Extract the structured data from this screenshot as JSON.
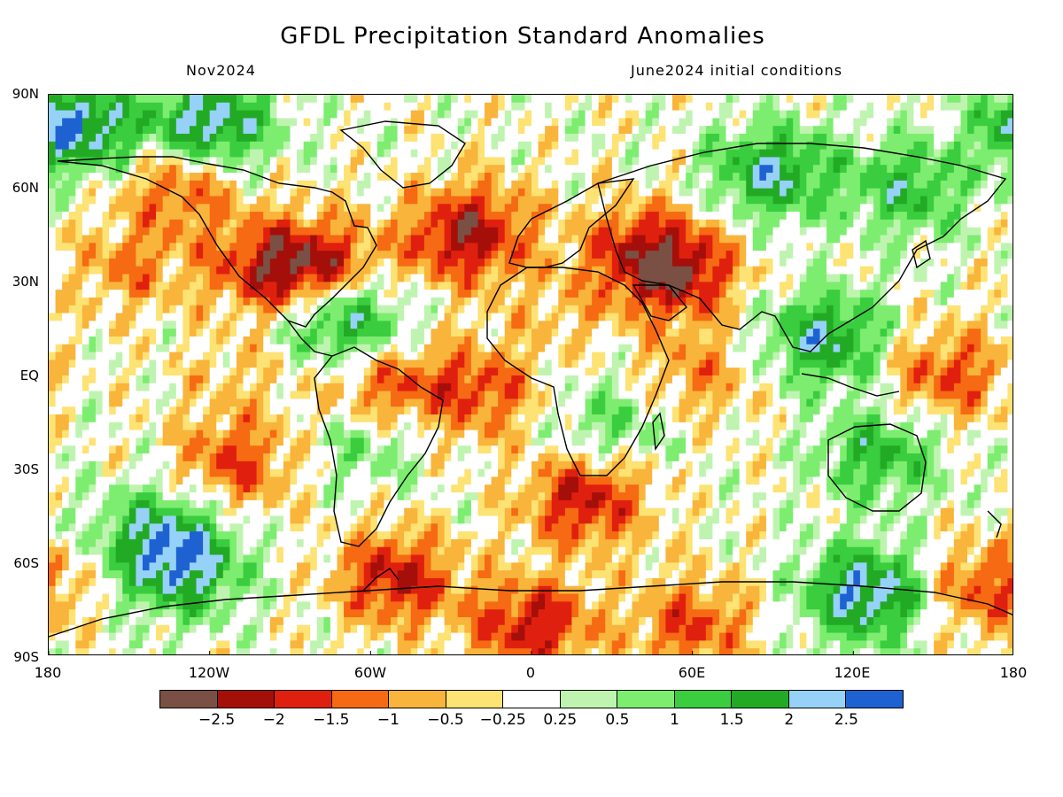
{
  "title": "GFDL Precipitation Standard Anomalies",
  "subtitle_left": "Nov2024",
  "subtitle_right": "June2024 initial conditions",
  "lat_labels": [
    "90N",
    "60N",
    "30N",
    "EQ",
    "30S",
    "60S",
    "90S"
  ],
  "lon_labels": [
    "180",
    "120W",
    "60W",
    "0",
    "60E",
    "120E",
    "180"
  ],
  "colorbar": {
    "colors": [
      "#7a5044",
      "#a50f0a",
      "#e0200e",
      "#f56a12",
      "#f9b43b",
      "#fde274",
      "#ffffff",
      "#bff4b0",
      "#7ded70",
      "#3acd3f",
      "#22aa25",
      "#96d2f7",
      "#1e62d2"
    ],
    "labels": [
      "−2.5",
      "−2",
      "−1.5",
      "−1",
      "−0.5",
      "−0.25",
      "0.25",
      "0.5",
      "1",
      "1.5",
      "2",
      "2.5"
    ]
  },
  "chart_data": {
    "type": "heatmap",
    "title": "GFDL Precipitation Standard Anomalies",
    "variable": "precipitation standard anomaly",
    "forecast_month": "Nov2024",
    "initial_conditions": "June2024 initial conditions",
    "lon_range": [
      -180,
      180
    ],
    "lat_range": [
      -90,
      90
    ],
    "levels": [
      -2.5,
      -2,
      -1.5,
      -1,
      -0.5,
      -0.25,
      0.25,
      0.5,
      1,
      1.5,
      2,
      2.5
    ],
    "regions": [
      {
        "lon": -130,
        "lat": 62,
        "value": -1.5
      },
      {
        "lon": -150,
        "lat": 35,
        "value": -1.0
      },
      {
        "lon": -100,
        "lat": 35,
        "value": -1.5
      },
      {
        "lon": -80,
        "lat": 35,
        "value": -2.0
      },
      {
        "lon": -70,
        "lat": 18,
        "value": 2.0
      },
      {
        "lon": -30,
        "lat": 42,
        "value": -1.0
      },
      {
        "lon": -20,
        "lat": 47,
        "value": -1.5
      },
      {
        "lon": 40,
        "lat": 40,
        "value": -1.5
      },
      {
        "lon": 55,
        "lat": 33,
        "value": -2.0
      },
      {
        "lon": 10,
        "lat": 20,
        "value": -0.5
      },
      {
        "lon": -55,
        "lat": -5,
        "value": -1.5
      },
      {
        "lon": -20,
        "lat": -5,
        "value": -1.5
      },
      {
        "lon": 20,
        "lat": -40,
        "value": -2.0
      },
      {
        "lon": -110,
        "lat": -28,
        "value": -1.5
      },
      {
        "lon": -110,
        "lat": 0,
        "value": -0.5
      },
      {
        "lon": 155,
        "lat": 0,
        "value": -1.5
      },
      {
        "lon": 60,
        "lat": 0,
        "value": -1.0
      },
      {
        "lon": 110,
        "lat": 12,
        "value": 2.0
      },
      {
        "lon": 90,
        "lat": 65,
        "value": 2.0
      },
      {
        "lon": 140,
        "lat": 60,
        "value": 1.5
      },
      {
        "lon": -120,
        "lat": 80,
        "value": 2.5
      },
      {
        "lon": -170,
        "lat": 80,
        "value": 2.5
      },
      {
        "lon": -130,
        "lat": -62,
        "value": 2.0
      },
      {
        "lon": 125,
        "lat": -70,
        "value": 2.5
      },
      {
        "lon": -50,
        "lat": -65,
        "value": -2.0
      },
      {
        "lon": 0,
        "lat": -80,
        "value": -2.0
      },
      {
        "lon": 60,
        "lat": -80,
        "value": -1.5
      },
      {
        "lon": 170,
        "lat": -68,
        "value": -1.5
      },
      {
        "lon": 130,
        "lat": -25,
        "value": 1.5
      },
      {
        "lon": -60,
        "lat": -20,
        "value": 1.0
      },
      {
        "lon": 30,
        "lat": -15,
        "value": 1.0
      },
      {
        "lon": -140,
        "lat": -50,
        "value": 1.5
      }
    ]
  }
}
